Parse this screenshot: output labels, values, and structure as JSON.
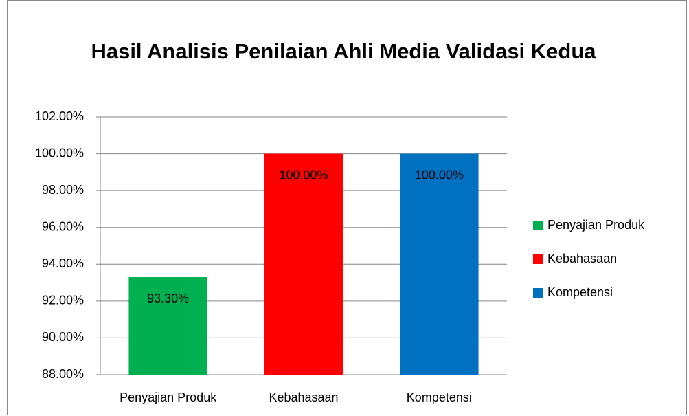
{
  "chart_data": {
    "type": "bar",
    "title": "Hasil Analisis Penilaian Ahli Media Validasi Kedua",
    "categories": [
      "Penyajian Produk",
      "Kebahasaan",
      "Kompetensi"
    ],
    "values": [
      93.3,
      100,
      100
    ],
    "value_labels": [
      "93.30%",
      "100.00%",
      "100.00%"
    ],
    "colors": [
      "#00b050",
      "#ff0000",
      "#0070c0"
    ],
    "ylim": [
      88,
      102
    ],
    "yticks": [
      {
        "value": 88,
        "label": "88.00%"
      },
      {
        "value": 90,
        "label": "90.00%"
      },
      {
        "value": 92,
        "label": "92.00%"
      },
      {
        "value": 94,
        "label": "94.00%"
      },
      {
        "value": 96,
        "label": "96.00%"
      },
      {
        "value": 98,
        "label": "98.00%"
      },
      {
        "value": 100,
        "label": "100.00%"
      },
      {
        "value": 102,
        "label": "102.00%"
      }
    ],
    "grid": true,
    "legend": "right"
  }
}
